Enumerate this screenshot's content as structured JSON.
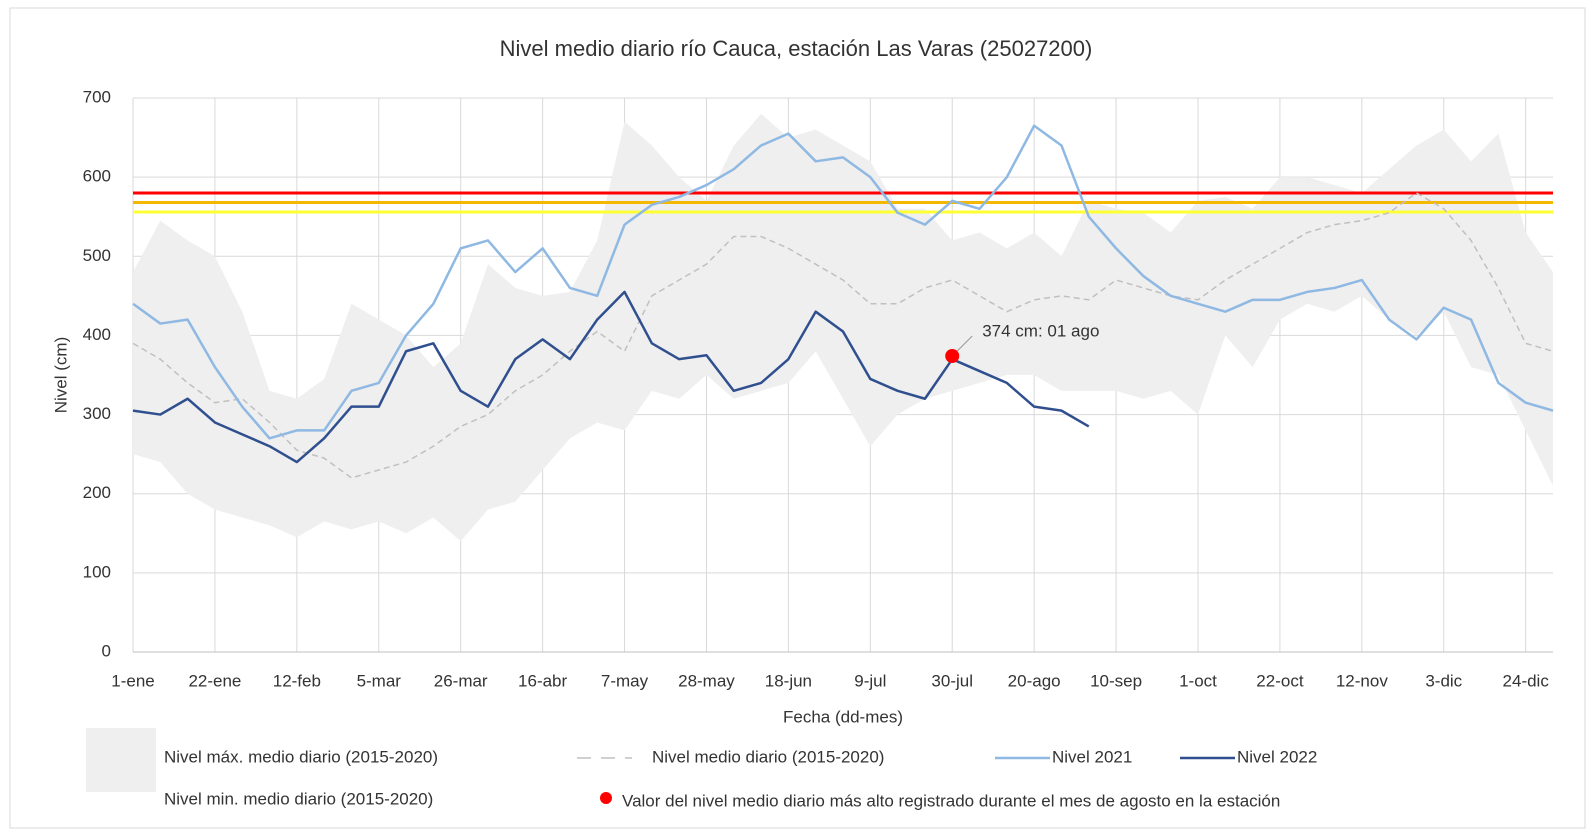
{
  "chart_data": {
    "type": "line",
    "title": "Nivel medio diario río Cauca, estación Las Varas (25027200)",
    "x_label": "Fecha (dd-mes)",
    "y_label": "Nivel (cm)",
    "categories": [
      "1-ene",
      null,
      null,
      "22-ene",
      null,
      null,
      "12-feb",
      null,
      null,
      "5-mar",
      null,
      null,
      "26-mar",
      null,
      null,
      "16-abr",
      null,
      null,
      "7-may",
      null,
      null,
      "28-may",
      null,
      null,
      "18-jun",
      null,
      null,
      "9-jul",
      null,
      null,
      "30-jul",
      null,
      null,
      "20-ago",
      null,
      null,
      "10-sep",
      null,
      null,
      "1-oct",
      null,
      null,
      "22-oct",
      null,
      null,
      "12-nov",
      null,
      null,
      "3-dic",
      null,
      null,
      "24-dic",
      null
    ],
    "ylim": [
      0,
      700
    ],
    "yticks": [
      0,
      100,
      200,
      300,
      400,
      500,
      600,
      700
    ],
    "grid": true,
    "series": [
      {
        "name": "Nivel máx. medio diario (2015-2020)",
        "style": "band-max",
        "color": "#efefef",
        "values": [
          480,
          545,
          520,
          500,
          430,
          330,
          320,
          345,
          440,
          420,
          400,
          360,
          390,
          490,
          460,
          450,
          455,
          520,
          670,
          640,
          600,
          570,
          640,
          680,
          650,
          660,
          640,
          620,
          560,
          560,
          520,
          530,
          510,
          530,
          500,
          570,
          560,
          555,
          530,
          570,
          575,
          560,
          600,
          600,
          590,
          580,
          610,
          640,
          660,
          620,
          655,
          530,
          480
        ]
      },
      {
        "name": "Nivel min. medio diario (2015-2020)",
        "style": "band-min",
        "color": "#efefef",
        "values": [
          250,
          240,
          200,
          180,
          170,
          160,
          145,
          165,
          155,
          165,
          150,
          170,
          140,
          180,
          190,
          230,
          270,
          290,
          280,
          330,
          320,
          350,
          320,
          330,
          340,
          380,
          320,
          260,
          300,
          320,
          330,
          340,
          350,
          350,
          330,
          330,
          330,
          320,
          330,
          300,
          400,
          360,
          420,
          440,
          430,
          450,
          420,
          400,
          430,
          360,
          350,
          280,
          210
        ]
      },
      {
        "name": "Nivel medio diario (2015-2020)",
        "style": "dashed",
        "color": "#c0c0c0",
        "values": [
          390,
          370,
          340,
          315,
          320,
          290,
          255,
          245,
          220,
          230,
          240,
          260,
          285,
          300,
          330,
          350,
          380,
          405,
          380,
          450,
          470,
          490,
          525,
          525,
          510,
          490,
          470,
          440,
          440,
          460,
          470,
          450,
          430,
          445,
          450,
          445,
          470,
          460,
          450,
          445,
          470,
          490,
          510,
          530,
          540,
          545,
          555,
          580,
          560,
          520,
          460,
          390,
          380
        ]
      },
      {
        "name": "Nivel 2021",
        "style": "solid",
        "color": "#8fb9e3",
        "values": [
          440,
          415,
          420,
          360,
          310,
          270,
          280,
          280,
          330,
          340,
          400,
          440,
          510,
          520,
          480,
          510,
          460,
          450,
          540,
          565,
          575,
          590,
          610,
          640,
          655,
          620,
          625,
          600,
          555,
          540,
          570,
          560,
          600,
          665,
          640,
          550,
          510,
          475,
          450,
          440,
          430,
          445,
          445,
          455,
          460,
          470,
          420,
          395,
          435,
          420,
          340,
          315,
          305
        ]
      },
      {
        "name": "Nivel 2022",
        "style": "solid",
        "color": "#2f4f8f",
        "values": [
          305,
          300,
          320,
          290,
          275,
          260,
          240,
          270,
          310,
          310,
          380,
          390,
          330,
          310,
          370,
          395,
          370,
          420,
          455,
          390,
          370,
          375,
          330,
          340,
          370,
          430,
          405,
          345,
          330,
          320,
          370,
          355,
          340,
          310,
          305,
          285,
          null,
          null,
          null,
          null,
          null,
          null,
          null,
          null,
          null,
          null,
          null,
          null,
          null,
          null,
          null,
          null,
          null
        ]
      }
    ],
    "hlines": [
      {
        "value": 580,
        "color": "#ff0000"
      },
      {
        "value": 568,
        "color": "#f5b800"
      },
      {
        "value": 556,
        "color": "#ffff33"
      }
    ],
    "annotation": {
      "name": "Valor del nivel medio diario más alto registrado durante el mes de agosto en la estación",
      "color": "#ff0000",
      "x": "30-jul",
      "value": 374,
      "label": "374  cm: 01 ago"
    }
  }
}
